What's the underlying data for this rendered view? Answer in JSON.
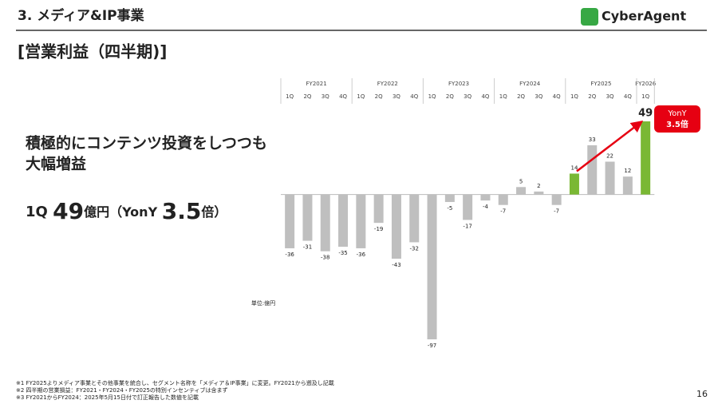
{
  "header": {
    "section": "3. メディア&IP事業",
    "logo": "CyberAgent",
    "subtitle": "[営業利益（四半期)]"
  },
  "message": {
    "lines": [
      "積極的にコンテンツ投資をしつつも",
      "大幅増益"
    ],
    "headline": [
      "1Q ",
      "49",
      "億円（YonY ",
      "3.5",
      "倍）"
    ]
  },
  "chart_data": {
    "type": "bar",
    "unit": "単位:億円",
    "color": "#bfbfbf",
    "highlight": "#7ab834",
    "groups": [
      {
        "name": "FY2021",
        "categories": [
          "1Q",
          "2Q",
          "3Q",
          "4Q"
        ],
        "values": [
          -36,
          -31,
          -38,
          -35
        ],
        "colors": [
          "#bfbfbf",
          "#bfbfbf",
          "#bfbfbf",
          "#bfbfbf"
        ]
      },
      {
        "name": "FY2022",
        "categories": [
          "1Q",
          "2Q",
          "3Q",
          "4Q"
        ],
        "values": [
          -36,
          -19,
          -43,
          -32
        ],
        "colors": [
          "#bfbfbf",
          "#bfbfbf",
          "#bfbfbf",
          "#bfbfbf"
        ]
      },
      {
        "name": "FY2023",
        "categories": [
          "1Q",
          "2Q",
          "3Q",
          "4Q"
        ],
        "values": [
          -97,
          -5,
          -17,
          -4
        ],
        "colors": [
          "#bfbfbf",
          "#bfbfbf",
          "#bfbfbf",
          "#bfbfbf"
        ]
      },
      {
        "name": "FY2024",
        "categories": [
          "1Q",
          "2Q",
          "3Q",
          "4Q"
        ],
        "values": [
          -7,
          5,
          2,
          -7
        ],
        "colors": [
          "#bfbfbf",
          "#bfbfbf",
          "#bfbfbf",
          "#bfbfbf"
        ]
      },
      {
        "name": "FY2025",
        "categories": [
          "1Q",
          "2Q",
          "3Q",
          "4Q"
        ],
        "values": [
          14,
          33,
          22,
          12
        ],
        "colors": [
          "#7ab834",
          "#bfbfbf",
          "#bfbfbf",
          "#bfbfbf"
        ]
      },
      {
        "name": "FY2026",
        "categories": [
          "1Q"
        ],
        "values": [
          49
        ],
        "colors": [
          "#7ab834"
        ]
      }
    ],
    "annotation": [
      "YonY",
      "3.5倍"
    ]
  },
  "footnotes": [
    "※1 FY2025よりメディア事業とその他事業を統合し、セグメント名称を「メディア＆IP事業」に変更。FY2021から遡及し記載",
    "※2 四半期の営業損益：FY2021・FY2024・FY2025の特別インセンティブは含まず",
    "※3 FY2021からFY2024：2025年5月15日付で訂正報告した数値を記載"
  ],
  "page_number": "16"
}
